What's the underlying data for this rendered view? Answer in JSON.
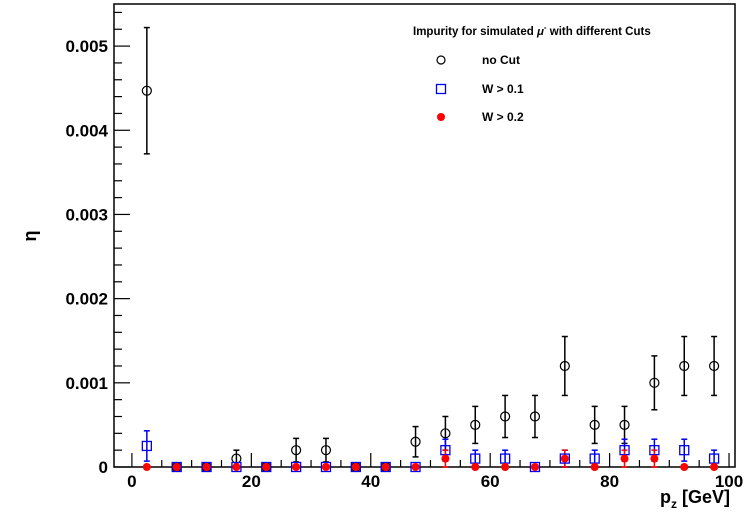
{
  "chart_data": {
    "type": "scatter",
    "title": "Impurity for simulated μ⁻ with different Cuts",
    "xlabel": "p_z [GeV]",
    "ylabel": "η",
    "xlim": [
      -3,
      101
    ],
    "ylim": [
      0,
      0.0055
    ],
    "x_ticks": [
      "0",
      "20",
      "40",
      "60",
      "80",
      "100"
    ],
    "y_ticks": [
      "0",
      "0.001",
      "0.002",
      "0.003",
      "0.004",
      "0.005"
    ],
    "grid": false,
    "legend_position": "top-right",
    "x": [
      2.5,
      7.5,
      12.5,
      17.5,
      22.5,
      27.5,
      32.5,
      37.5,
      42.5,
      47.5,
      52.5,
      57.5,
      62.5,
      67.5,
      72.5,
      77.5,
      82.5,
      87.5,
      92.5,
      97.5
    ],
    "series": [
      {
        "name": "no Cut",
        "marker": "open-circle",
        "color": "#000000",
        "values": [
          0.00447,
          0,
          0,
          0.0001,
          0,
          0.0002,
          0.0002,
          0,
          0,
          0.0003,
          0.0004,
          0.0005,
          0.0006,
          0.0006,
          0.0012,
          0.0005,
          0.0005,
          0.001,
          0.0012,
          0.0012
        ],
        "errors": [
          0.00075,
          0,
          0,
          0.0001,
          0,
          0.00014,
          0.00014,
          0,
          0,
          0.00018,
          0.0002,
          0.00022,
          0.00025,
          0.00025,
          0.00035,
          0.00022,
          0.00022,
          0.00032,
          0.00035,
          0.00035
        ]
      },
      {
        "name": "W > 0.1",
        "marker": "open-square",
        "color": "#0000ee",
        "values": [
          0.00025,
          0,
          0,
          0,
          0,
          0,
          0,
          0,
          0,
          0,
          0.0002,
          0.0001,
          0.0001,
          0,
          0.0001,
          0.0001,
          0.0002,
          0.0002,
          0.0002,
          0.0001
        ],
        "errors": [
          0.00018,
          0,
          0,
          0,
          0,
          0,
          0,
          0,
          0,
          0,
          0.00013,
          0.0001,
          0.0001,
          0,
          0.0001,
          0.0001,
          0.00013,
          0.00013,
          0.00013,
          0.0001
        ]
      },
      {
        "name": "W > 0.2",
        "marker": "filled-circle",
        "color": "#ff0000",
        "values": [
          0,
          0,
          0,
          0,
          0,
          0,
          0,
          0,
          0,
          0,
          0.0001,
          0,
          0,
          0,
          0.0001,
          0,
          0.0001,
          0.0001,
          0,
          0
        ],
        "errors": [
          0,
          0,
          0,
          0,
          0,
          0,
          0,
          0,
          0,
          0,
          0.0001,
          0,
          0,
          0,
          0.0001,
          0,
          0.0001,
          0.0001,
          0,
          0
        ]
      }
    ]
  }
}
